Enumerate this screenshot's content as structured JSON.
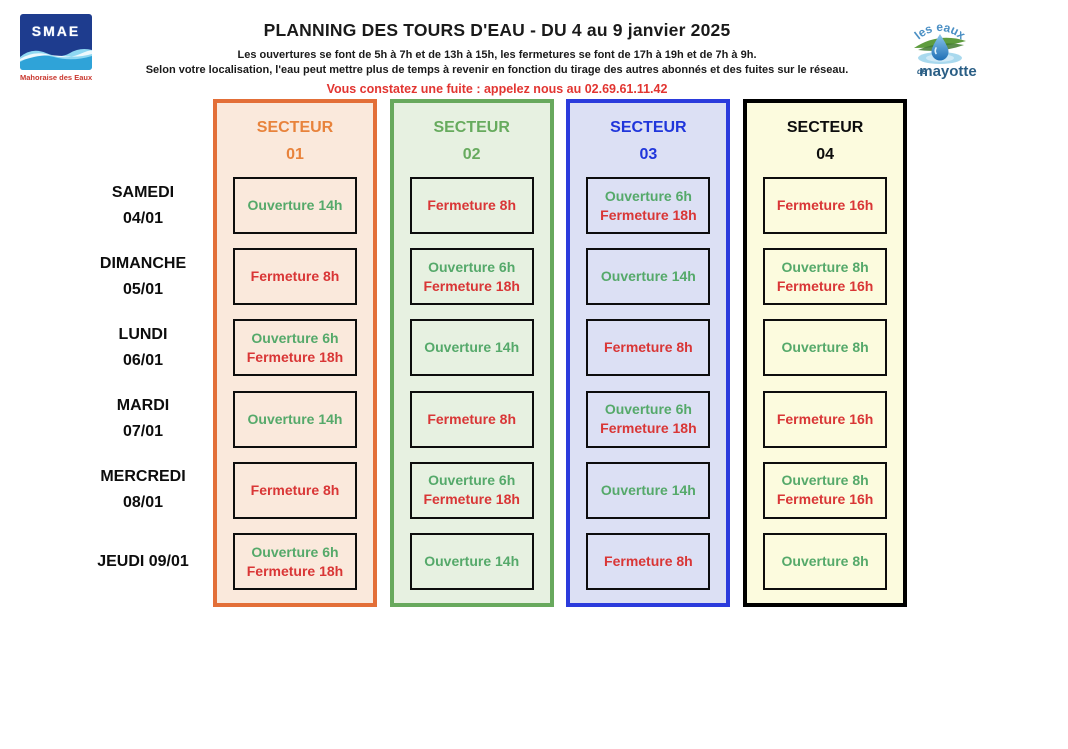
{
  "header": {
    "title": "PLANNING DES TOURS D'EAU - DU 4 au 9 janvier 2025",
    "subtitle1": "Les ouvertures se font de 5h à 7h et de 13h à 15h, les fermetures se font de 17h à 19h et de 7h à 9h.",
    "subtitle2": "Selon votre localisation, l'eau peut mettre plus de temps à revenir en fonction du tirage des autres abonnés et des fuites sur le réseau.",
    "leak_notice": "Vous constatez une fuite : appelez nous au 02.69.61.11.42",
    "leak_color": "#E23531"
  },
  "logos": {
    "smae": {
      "acronym": "SMAE",
      "caption": "Mahoraise des Eaux"
    },
    "mayotte": {
      "arc_text": "les eaux",
      "bottom_small": "de",
      "bottom": "mayotte"
    }
  },
  "status_colors": {
    "open": "#55A96A",
    "close": "#D93636"
  },
  "layout_colors": {
    "day_text": "#0d0d0d",
    "cell_border": "#0d0d0d"
  },
  "days": [
    {
      "lines": [
        "SAMEDI",
        "04/01"
      ]
    },
    {
      "lines": [
        "DIMANCHE",
        "05/01"
      ]
    },
    {
      "lines": [
        "LUNDI",
        "06/01"
      ]
    },
    {
      "lines": [
        "MARDI",
        "07/01"
      ]
    },
    {
      "lines": [
        "MERCREDI",
        "08/01"
      ]
    },
    {
      "lines": [
        "JEUDI 09/01"
      ]
    }
  ],
  "sectors": [
    {
      "title": "SECTEUR",
      "number": "01",
      "border_color": "#E36F38",
      "background": "#FAE9DC",
      "title_color": "#E8833C",
      "cells": [
        [
          {
            "text": "Ouverture 14h",
            "status": "open"
          }
        ],
        [
          {
            "text": "Fermeture 8h",
            "status": "close"
          }
        ],
        [
          {
            "text": "Ouverture 6h",
            "status": "open"
          },
          {
            "text": "Fermeture 18h",
            "status": "close"
          }
        ],
        [
          {
            "text": "Ouverture 14h",
            "status": "open"
          }
        ],
        [
          {
            "text": "Fermeture 8h",
            "status": "close"
          }
        ],
        [
          {
            "text": "Ouverture 6h",
            "status": "open"
          },
          {
            "text": "Fermeture 18h",
            "status": "close"
          }
        ]
      ]
    },
    {
      "title": "SECTEUR",
      "number": "02",
      "border_color": "#68A95D",
      "background": "#E7F1E1",
      "title_color": "#67AB5E",
      "cells": [
        [
          {
            "text": "Fermeture 8h",
            "status": "close"
          }
        ],
        [
          {
            "text": "Ouverture 6h",
            "status": "open"
          },
          {
            "text": "Fermeture 18h",
            "status": "close"
          }
        ],
        [
          {
            "text": "Ouverture 14h",
            "status": "open"
          }
        ],
        [
          {
            "text": "Fermeture 8h",
            "status": "close"
          }
        ],
        [
          {
            "text": "Ouverture 6h",
            "status": "open"
          },
          {
            "text": "Fermeture 18h",
            "status": "close"
          }
        ],
        [
          {
            "text": "Ouverture 14h",
            "status": "open"
          }
        ]
      ]
    },
    {
      "title": "SECTEUR",
      "number": "03",
      "border_color": "#2B3BDC",
      "background": "#DCE0F4",
      "title_color": "#2036DB",
      "cells": [
        [
          {
            "text": "Ouverture 6h",
            "status": "open"
          },
          {
            "text": "Fermeture 18h",
            "status": "close"
          }
        ],
        [
          {
            "text": "Ouverture 14h",
            "status": "open"
          }
        ],
        [
          {
            "text": "Fermeture 8h",
            "status": "close"
          }
        ],
        [
          {
            "text": "Ouverture 6h",
            "status": "open"
          },
          {
            "text": "Fermeture 18h",
            "status": "close"
          }
        ],
        [
          {
            "text": "Ouverture 14h",
            "status": "open"
          }
        ],
        [
          {
            "text": "Fermeture 8h",
            "status": "close"
          }
        ]
      ]
    },
    {
      "title": "SECTEUR",
      "number": "04",
      "border_color": "#000000",
      "background": "#FCFBDE",
      "title_color": "#0d0d0d",
      "cells": [
        [
          {
            "text": "Fermeture 16h",
            "status": "close"
          }
        ],
        [
          {
            "text": "Ouverture 8h",
            "status": "open"
          },
          {
            "text": "Fermeture 16h",
            "status": "close"
          }
        ],
        [
          {
            "text": "Ouverture 8h",
            "status": "open"
          }
        ],
        [
          {
            "text": "Fermeture 16h",
            "status": "close"
          }
        ],
        [
          {
            "text": "Ouverture 8h",
            "status": "open"
          },
          {
            "text": "Fermeture 16h",
            "status": "close"
          }
        ],
        [
          {
            "text": "Ouverture 8h",
            "status": "open"
          }
        ]
      ]
    }
  ]
}
